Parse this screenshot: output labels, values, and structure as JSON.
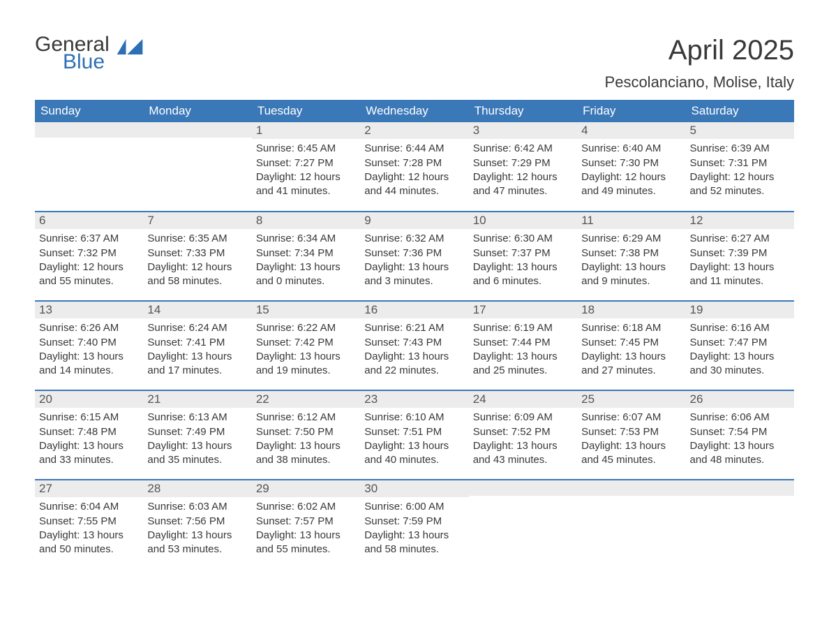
{
  "logo": {
    "line1": "General",
    "line2": "Blue"
  },
  "title": "April 2025",
  "location": "Pescolanciano, Molise, Italy",
  "colors": {
    "header_bg": "#3b78b8",
    "header_text": "#ffffff",
    "daynum_bg": "#ececec",
    "daynum_text": "#545454",
    "body_text": "#383838",
    "week_divider": "#3b78b8",
    "logo_blue": "#2d6fb5",
    "page_bg": "#ffffff"
  },
  "layout": {
    "type": "table",
    "columns": 7,
    "rows": 5,
    "font_family": "Arial",
    "header_fontsize": 17,
    "daynum_fontsize": 17,
    "content_fontsize": 15,
    "title_fontsize": 40,
    "location_fontsize": 22
  },
  "weekdays": [
    "Sunday",
    "Monday",
    "Tuesday",
    "Wednesday",
    "Thursday",
    "Friday",
    "Saturday"
  ],
  "weeks": [
    [
      {
        "day": "",
        "sunrise": "",
        "sunset": "",
        "daylight": ""
      },
      {
        "day": "",
        "sunrise": "",
        "sunset": "",
        "daylight": ""
      },
      {
        "day": "1",
        "sunrise": "Sunrise: 6:45 AM",
        "sunset": "Sunset: 7:27 PM",
        "daylight": "Daylight: 12 hours and 41 minutes."
      },
      {
        "day": "2",
        "sunrise": "Sunrise: 6:44 AM",
        "sunset": "Sunset: 7:28 PM",
        "daylight": "Daylight: 12 hours and 44 minutes."
      },
      {
        "day": "3",
        "sunrise": "Sunrise: 6:42 AM",
        "sunset": "Sunset: 7:29 PM",
        "daylight": "Daylight: 12 hours and 47 minutes."
      },
      {
        "day": "4",
        "sunrise": "Sunrise: 6:40 AM",
        "sunset": "Sunset: 7:30 PM",
        "daylight": "Daylight: 12 hours and 49 minutes."
      },
      {
        "day": "5",
        "sunrise": "Sunrise: 6:39 AM",
        "sunset": "Sunset: 7:31 PM",
        "daylight": "Daylight: 12 hours and 52 minutes."
      }
    ],
    [
      {
        "day": "6",
        "sunrise": "Sunrise: 6:37 AM",
        "sunset": "Sunset: 7:32 PM",
        "daylight": "Daylight: 12 hours and 55 minutes."
      },
      {
        "day": "7",
        "sunrise": "Sunrise: 6:35 AM",
        "sunset": "Sunset: 7:33 PM",
        "daylight": "Daylight: 12 hours and 58 minutes."
      },
      {
        "day": "8",
        "sunrise": "Sunrise: 6:34 AM",
        "sunset": "Sunset: 7:34 PM",
        "daylight": "Daylight: 13 hours and 0 minutes."
      },
      {
        "day": "9",
        "sunrise": "Sunrise: 6:32 AM",
        "sunset": "Sunset: 7:36 PM",
        "daylight": "Daylight: 13 hours and 3 minutes."
      },
      {
        "day": "10",
        "sunrise": "Sunrise: 6:30 AM",
        "sunset": "Sunset: 7:37 PM",
        "daylight": "Daylight: 13 hours and 6 minutes."
      },
      {
        "day": "11",
        "sunrise": "Sunrise: 6:29 AM",
        "sunset": "Sunset: 7:38 PM",
        "daylight": "Daylight: 13 hours and 9 minutes."
      },
      {
        "day": "12",
        "sunrise": "Sunrise: 6:27 AM",
        "sunset": "Sunset: 7:39 PM",
        "daylight": "Daylight: 13 hours and 11 minutes."
      }
    ],
    [
      {
        "day": "13",
        "sunrise": "Sunrise: 6:26 AM",
        "sunset": "Sunset: 7:40 PM",
        "daylight": "Daylight: 13 hours and 14 minutes."
      },
      {
        "day": "14",
        "sunrise": "Sunrise: 6:24 AM",
        "sunset": "Sunset: 7:41 PM",
        "daylight": "Daylight: 13 hours and 17 minutes."
      },
      {
        "day": "15",
        "sunrise": "Sunrise: 6:22 AM",
        "sunset": "Sunset: 7:42 PM",
        "daylight": "Daylight: 13 hours and 19 minutes."
      },
      {
        "day": "16",
        "sunrise": "Sunrise: 6:21 AM",
        "sunset": "Sunset: 7:43 PM",
        "daylight": "Daylight: 13 hours and 22 minutes."
      },
      {
        "day": "17",
        "sunrise": "Sunrise: 6:19 AM",
        "sunset": "Sunset: 7:44 PM",
        "daylight": "Daylight: 13 hours and 25 minutes."
      },
      {
        "day": "18",
        "sunrise": "Sunrise: 6:18 AM",
        "sunset": "Sunset: 7:45 PM",
        "daylight": "Daylight: 13 hours and 27 minutes."
      },
      {
        "day": "19",
        "sunrise": "Sunrise: 6:16 AM",
        "sunset": "Sunset: 7:47 PM",
        "daylight": "Daylight: 13 hours and 30 minutes."
      }
    ],
    [
      {
        "day": "20",
        "sunrise": "Sunrise: 6:15 AM",
        "sunset": "Sunset: 7:48 PM",
        "daylight": "Daylight: 13 hours and 33 minutes."
      },
      {
        "day": "21",
        "sunrise": "Sunrise: 6:13 AM",
        "sunset": "Sunset: 7:49 PM",
        "daylight": "Daylight: 13 hours and 35 minutes."
      },
      {
        "day": "22",
        "sunrise": "Sunrise: 6:12 AM",
        "sunset": "Sunset: 7:50 PM",
        "daylight": "Daylight: 13 hours and 38 minutes."
      },
      {
        "day": "23",
        "sunrise": "Sunrise: 6:10 AM",
        "sunset": "Sunset: 7:51 PM",
        "daylight": "Daylight: 13 hours and 40 minutes."
      },
      {
        "day": "24",
        "sunrise": "Sunrise: 6:09 AM",
        "sunset": "Sunset: 7:52 PM",
        "daylight": "Daylight: 13 hours and 43 minutes."
      },
      {
        "day": "25",
        "sunrise": "Sunrise: 6:07 AM",
        "sunset": "Sunset: 7:53 PM",
        "daylight": "Daylight: 13 hours and 45 minutes."
      },
      {
        "day": "26",
        "sunrise": "Sunrise: 6:06 AM",
        "sunset": "Sunset: 7:54 PM",
        "daylight": "Daylight: 13 hours and 48 minutes."
      }
    ],
    [
      {
        "day": "27",
        "sunrise": "Sunrise: 6:04 AM",
        "sunset": "Sunset: 7:55 PM",
        "daylight": "Daylight: 13 hours and 50 minutes."
      },
      {
        "day": "28",
        "sunrise": "Sunrise: 6:03 AM",
        "sunset": "Sunset: 7:56 PM",
        "daylight": "Daylight: 13 hours and 53 minutes."
      },
      {
        "day": "29",
        "sunrise": "Sunrise: 6:02 AM",
        "sunset": "Sunset: 7:57 PM",
        "daylight": "Daylight: 13 hours and 55 minutes."
      },
      {
        "day": "30",
        "sunrise": "Sunrise: 6:00 AM",
        "sunset": "Sunset: 7:59 PM",
        "daylight": "Daylight: 13 hours and 58 minutes."
      },
      {
        "day": "",
        "sunrise": "",
        "sunset": "",
        "daylight": ""
      },
      {
        "day": "",
        "sunrise": "",
        "sunset": "",
        "daylight": ""
      },
      {
        "day": "",
        "sunrise": "",
        "sunset": "",
        "daylight": ""
      }
    ]
  ]
}
